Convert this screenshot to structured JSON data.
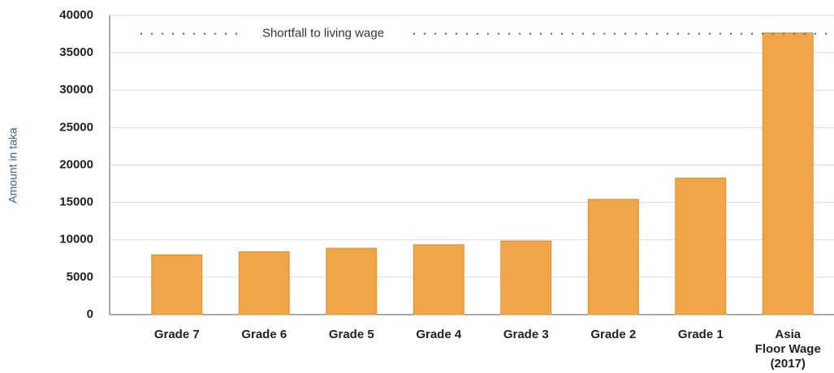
{
  "chart_data": {
    "type": "bar",
    "y_label": "Amount in taka",
    "annotation": "Shortfall to living wage",
    "categories": [
      "Grade 7",
      "Grade 6",
      "Grade 5",
      "Grade 4",
      "Grade 3",
      "Grade 2",
      "Grade 1",
      "Asia Floor Wage (2017)"
    ],
    "values": [
      8000,
      8405,
      8875,
      9347,
      9845,
      15416,
      18257,
      37661
    ],
    "color": "#f0a548",
    "ylim": [
      0,
      40000
    ],
    "yticks": [
      0,
      5000,
      10000,
      15000,
      20000,
      25000,
      30000,
      35000,
      40000
    ],
    "grid": true
  }
}
